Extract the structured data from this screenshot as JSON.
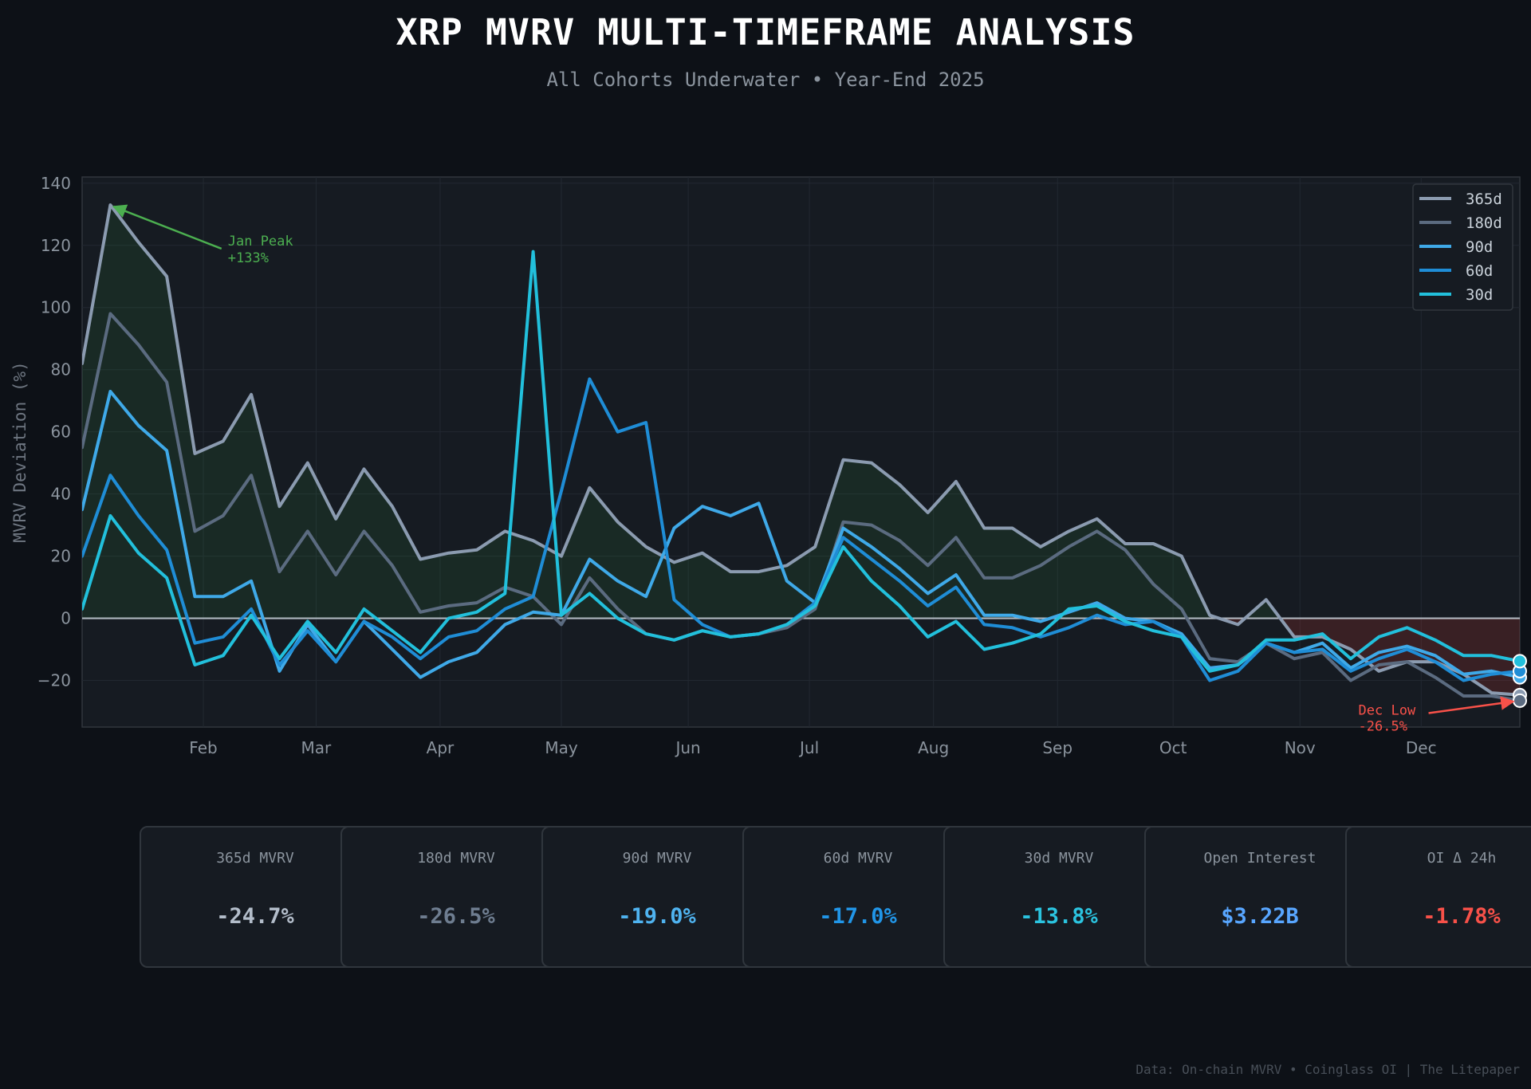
{
  "header": {
    "title": "XRP MVRV MULTI-TIMEFRAME ANALYSIS",
    "subtitle": "All Cohorts Underwater • Year-End 2025"
  },
  "chart_data": {
    "type": "line",
    "ylabel": "MVRV Deviation (%)",
    "xlabel": "",
    "ylim": [
      -35,
      142
    ],
    "yticks": [
      -20,
      0,
      20,
      40,
      60,
      80,
      100,
      120,
      140
    ],
    "xticks": [
      "Feb",
      "Mar",
      "Apr",
      "May",
      "Jun",
      "Jul",
      "Aug",
      "Sep",
      "Oct",
      "Nov",
      "Dec"
    ],
    "xtick_index": [
      4.3,
      8.3,
      12.7,
      17,
      21.5,
      25.8,
      30.2,
      34.6,
      38.7,
      43.2,
      47.5
    ],
    "grid": true,
    "legend_position": "top-right",
    "point_count": 52,
    "series": [
      {
        "name": "365d",
        "color": "#8b9bb0",
        "values": [
          82,
          133,
          121,
          110,
          53,
          57,
          72,
          36,
          50,
          32,
          48,
          36,
          19,
          21,
          22,
          28,
          25,
          20,
          42,
          31,
          23,
          18,
          21,
          15,
          15,
          17,
          23,
          51,
          50,
          43,
          34,
          44,
          29,
          29,
          23,
          28,
          32,
          24,
          24,
          20,
          1,
          -2,
          6,
          -6,
          -6,
          -10,
          -17,
          -14,
          -14,
          -18,
          -24,
          -24.7
        ]
      },
      {
        "name": "180d",
        "color": "#5b6b80",
        "values": [
          55,
          98,
          88,
          76,
          28,
          33,
          46,
          15,
          28,
          14,
          28,
          17,
          2,
          4,
          5,
          10,
          7,
          -2,
          13,
          3,
          -5,
          -7,
          -4,
          -6,
          -5,
          -3,
          3,
          31,
          30,
          25,
          17,
          26,
          13,
          13,
          17,
          23,
          28,
          22,
          11,
          3,
          -13,
          -14,
          -8,
          -13,
          -11,
          -20,
          -15,
          -14,
          -19,
          -25,
          -25,
          -26.5
        ]
      },
      {
        "name": "90d",
        "color": "#3fa9e8",
        "values": [
          35,
          73,
          62,
          54,
          7,
          7,
          12,
          -17,
          -2,
          -14,
          -1,
          -10,
          -19,
          -14,
          -11,
          -2,
          2,
          1,
          19,
          12,
          7,
          29,
          36,
          33,
          37,
          12,
          5,
          29,
          23,
          16,
          8,
          14,
          1,
          1,
          -1,
          2,
          5,
          0,
          -1,
          -5,
          -16,
          -15,
          -8,
          -11,
          -8,
          -16,
          -11,
          -9,
          -12,
          -18,
          -17,
          -19.0
        ]
      },
      {
        "name": "60d",
        "color": "#1f8dd6",
        "values": [
          20,
          46,
          33,
          22,
          -8,
          -6,
          3,
          -15,
          -4,
          -14,
          -1,
          -6,
          -13,
          -6,
          -4,
          3,
          7,
          41,
          77,
          60,
          63,
          6,
          -2,
          -6,
          -5,
          -2,
          5,
          26,
          19,
          12,
          4,
          10,
          -2,
          -3,
          -6,
          -3,
          1,
          -2,
          -1,
          -6,
          -20,
          -17,
          -8,
          -11,
          -10,
          -17,
          -13,
          -10,
          -14,
          -20,
          -18,
          -17.0
        ]
      },
      {
        "name": "30d",
        "color": "#22c0dc",
        "values": [
          3,
          33,
          21,
          13,
          -15,
          -12,
          1,
          -13,
          -1,
          -11,
          3,
          -4,
          -11,
          0,
          2,
          8,
          118,
          1,
          8,
          0,
          -5,
          -7,
          -4,
          -6,
          -5,
          -2,
          4,
          23,
          12,
          4,
          -6,
          -1,
          -10,
          -8,
          -5,
          3,
          4,
          -1,
          -4,
          -6,
          -17,
          -15,
          -7,
          -7,
          -5,
          -13,
          -6,
          -3,
          -7,
          -12,
          -12,
          -13.8
        ]
      }
    ],
    "annotations": [
      {
        "text_line1": "Jan Peak",
        "text_line2": "+133%",
        "color": "#4caf50",
        "target_index": 1,
        "target_value": 133,
        "label_index": 5,
        "label_value": 122
      },
      {
        "text_line1": "Dec Low",
        "text_line2": "-26.5%",
        "color": "#f85149",
        "target_index": 51,
        "target_value": -26.5,
        "label_index": 45.5,
        "label_value": -30
      }
    ]
  },
  "cards": [
    {
      "label": "365d MVRV",
      "value": "-24.7%",
      "color": "#b3bdca"
    },
    {
      "label": "180d MVRV",
      "value": "-26.5%",
      "color": "#6e7d90"
    },
    {
      "label": "90d MVRV",
      "value": "-19.0%",
      "color": "#4fb3f0"
    },
    {
      "label": "60d MVRV",
      "value": "-17.0%",
      "color": "#2196e8"
    },
    {
      "label": "30d MVRV",
      "value": "-13.8%",
      "color": "#2bc4e0"
    },
    {
      "label": "Open Interest",
      "value": "$3.22B",
      "color": "#58a6ff"
    },
    {
      "label": "OI Δ 24h",
      "value": "-1.78%",
      "color": "#f85149"
    }
  ],
  "footer": "Data: On-chain MVRV • Coinglass OI | The Litepaper"
}
